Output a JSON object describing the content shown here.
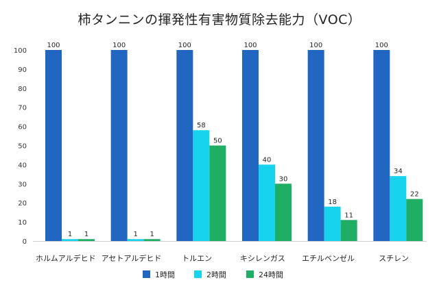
{
  "chart_data": {
    "type": "bar",
    "title": "柿タンニンの揮発性有害物質除去能力（VOC）",
    "xlabel": "",
    "ylabel": "",
    "ylim": [
      0,
      100
    ],
    "yticks": [
      0,
      10,
      20,
      30,
      40,
      50,
      60,
      70,
      80,
      90,
      100
    ],
    "grid": false,
    "legend_position": "bottom",
    "categories": [
      "ホルムアルデヒド",
      "アセトアルデヒド",
      "トルエン",
      "キシレンガス",
      "エチルベンゼル",
      "スチレン"
    ],
    "series": [
      {
        "name": "1時間",
        "color": "#2167c2",
        "values": [
          100,
          100,
          100,
          100,
          100,
          100
        ]
      },
      {
        "name": "2時間",
        "color": "#18d3ee",
        "values": [
          1,
          1,
          58,
          40,
          18,
          34
        ]
      },
      {
        "name": "24時間",
        "color": "#1fae63",
        "values": [
          1,
          1,
          50,
          30,
          11,
          22
        ]
      }
    ]
  }
}
